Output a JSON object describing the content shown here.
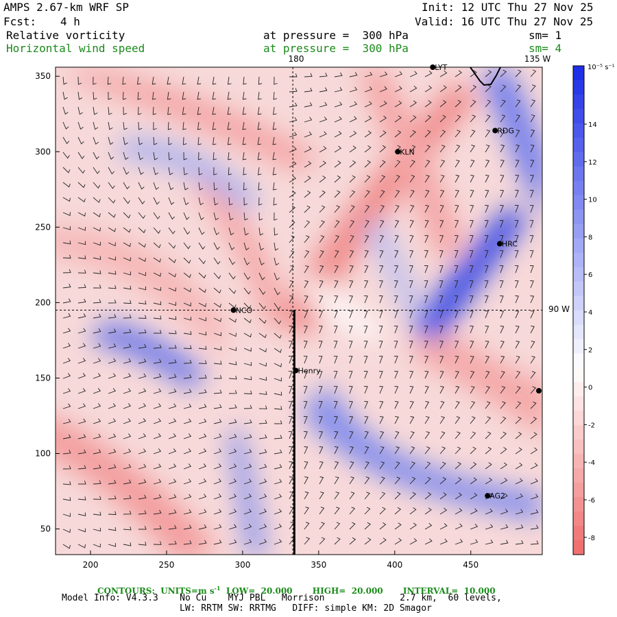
{
  "header": {
    "model": "AMPS 2.67-km WRF SP",
    "fcst_label": "Fcst:",
    "fcst_value": "4 h",
    "init": "Init: 12 UTC Thu 27 Nov 25",
    "valid": "Valid: 16 UTC Thu 27 Nov 25"
  },
  "fields": [
    {
      "name": "Relative vorticity",
      "level": "at pressure =  300 hPa",
      "sm": "sm= 1"
    },
    {
      "name": "Horizontal wind speed",
      "level": "at pressure =  300 hPa",
      "sm": "sm= 4"
    }
  ],
  "map": {
    "x_ticks": [
      "200",
      "250",
      "300",
      "350",
      "400",
      "450"
    ],
    "x_tick_values": [
      200,
      250,
      300,
      350,
      400,
      450
    ],
    "y_ticks": [
      "50",
      "100",
      "150",
      "200",
      "250",
      "300",
      "350"
    ],
    "y_tick_values": [
      50,
      100,
      150,
      200,
      250,
      300,
      350
    ],
    "x_range": [
      177,
      497
    ],
    "y_range": [
      33,
      356
    ],
    "meridian_labels": [
      "180",
      "135 W"
    ],
    "parallel_label": "90 W",
    "meridian_180_x": 333,
    "parallel_y": 195,
    "section_line_x": 334,
    "stations": [
      {
        "name": "LYT",
        "x": 425,
        "y": 356
      },
      {
        "name": "RDG",
        "x": 466,
        "y": 314
      },
      {
        "name": "KLN",
        "x": 402,
        "y": 300
      },
      {
        "name": "HRC",
        "x": 469,
        "y": 239
      },
      {
        "name": "NCO",
        "x": 294,
        "y": 195
      },
      {
        "name": "Henry",
        "x": 335,
        "y": 155
      },
      {
        "name": "AG2",
        "x": 461,
        "y": 72
      }
    ]
  },
  "colorbar": {
    "units": "10⁻⁵ s⁻¹",
    "ticks": [
      "14",
      "12",
      "10",
      "8",
      "6",
      "4",
      "2",
      "0",
      "-2",
      "-4",
      "-6",
      "-8"
    ],
    "colors": {
      "neg": "#f07070",
      "zero": "#ffffff",
      "pos": "#1f2fe6"
    }
  },
  "footer": {
    "contours": "CONTOURS:  UNITS=m s",
    "contours_rest": "  LOW=  20.000       HIGH=  20.000       INTERVAL=  10.000",
    "model_info": "Model Info: V4.3.3    No Cu    MYJ PBL   Morrison              2.7 km,  60 levels,",
    "physics": "LW: RRTM SW: RRTMG   DIFF: simple KM: 2D Smagor"
  }
}
